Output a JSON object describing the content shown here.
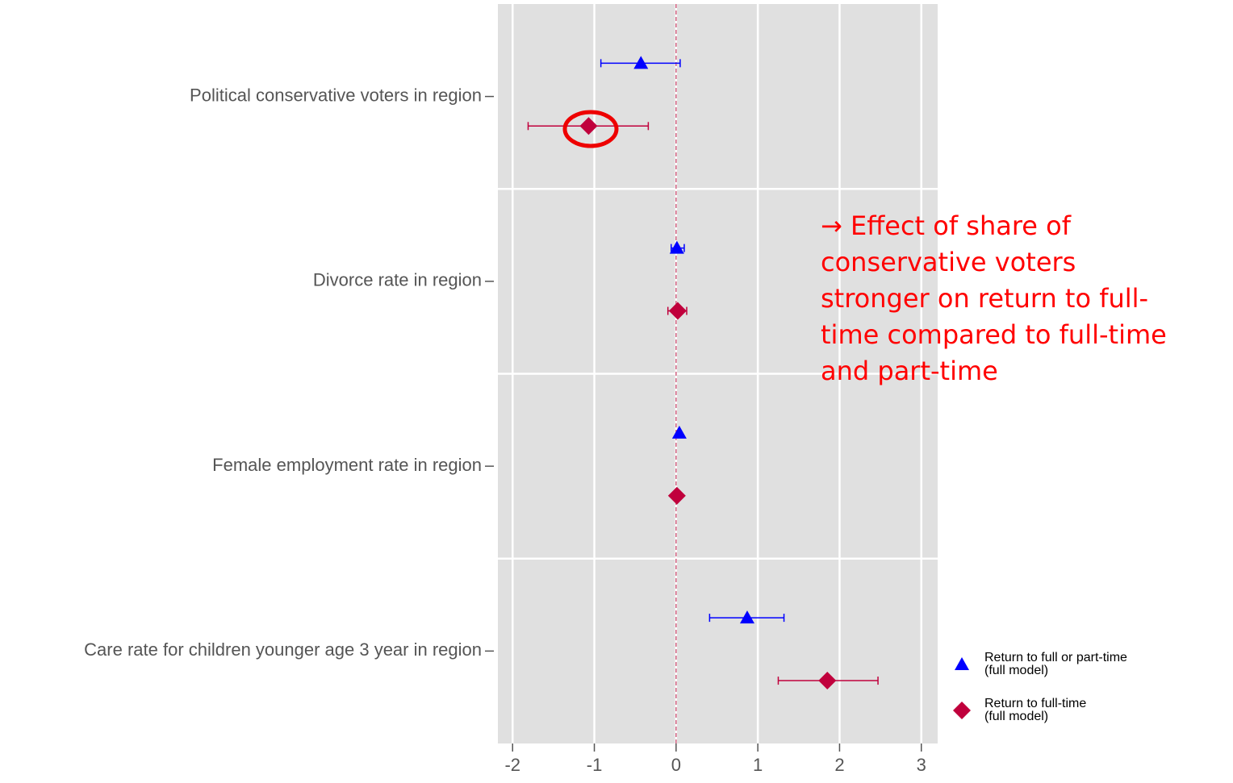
{
  "chart_data": {
    "type": "coefplot",
    "categories": [
      "Political conservative voters in region",
      "Divorce rate in region",
      "Female employment rate in region",
      "Care rate for children younger age 3 year in region"
    ],
    "series": [
      {
        "name": "Return to full or part-time\n(full model)",
        "color": "#0000ff",
        "marker": "triangle",
        "values": [
          -0.43,
          0.01,
          0.04,
          0.87
        ],
        "lower": [
          -0.92,
          -0.06,
          0.04,
          0.41
        ],
        "upper": [
          0.05,
          0.1,
          0.04,
          1.32
        ]
      },
      {
        "name": "Return to full-time\n(full model)",
        "color": "#c0003c",
        "marker": "diamond",
        "values": [
          -1.07,
          0.02,
          0.01,
          1.85
        ],
        "lower": [
          -1.81,
          -0.1,
          0.01,
          1.25
        ],
        "upper": [
          -0.34,
          0.13,
          0.01,
          2.47
        ]
      }
    ],
    "xlim": [
      -2.18,
      3.2
    ],
    "xticks": [
      -2,
      -1,
      0,
      1,
      2,
      3
    ],
    "refline": 0,
    "grid": true,
    "annotation": [
      "→ Effect of share of",
      "conservative voters",
      "stronger on return to full-",
      "time compared to full-time",
      "and part-time"
    ]
  }
}
